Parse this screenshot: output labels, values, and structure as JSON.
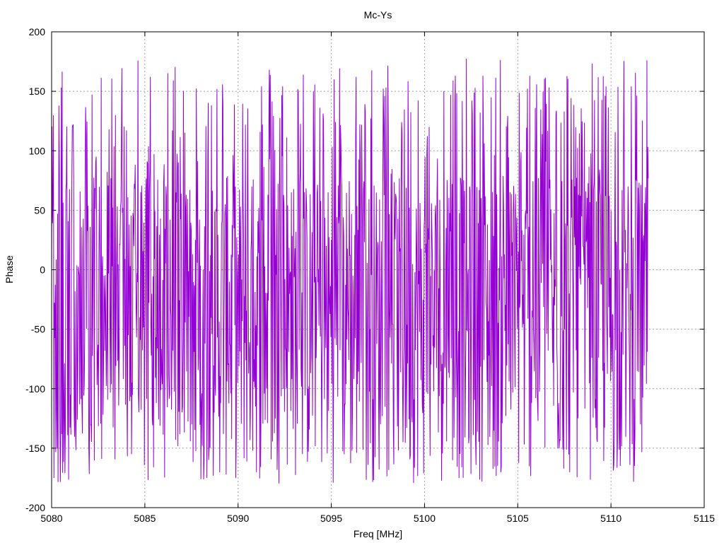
{
  "chart_data": {
    "type": "line",
    "title": "Mc-Ys",
    "xlabel": "Freq [MHz]",
    "ylabel": "Phase",
    "xlim": [
      5080,
      5115
    ],
    "ylim": [
      -200,
      200
    ],
    "xticks": [
      5080,
      5085,
      5090,
      5095,
      5100,
      5105,
      5110,
      5115
    ],
    "yticks": [
      -200,
      -150,
      -100,
      -50,
      0,
      50,
      100,
      150,
      200
    ],
    "grid": true,
    "legend": "none",
    "series": [
      {
        "color": "#9400d3",
        "x_start": 5080,
        "x_end": 5112,
        "points": 1300,
        "y_range": [
          -180,
          178
        ],
        "pattern": "noise"
      }
    ]
  }
}
